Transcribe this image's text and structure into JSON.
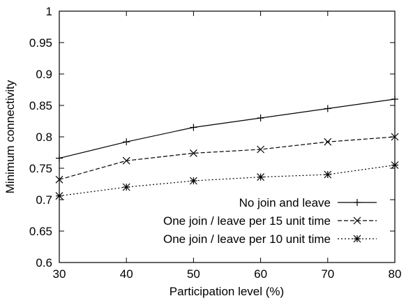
{
  "chart_data": {
    "type": "line",
    "title": "",
    "xlabel": "Participation level (%)",
    "ylabel": "Minimum connectivity",
    "xlim": [
      30,
      80
    ],
    "ylim": [
      0.6,
      1.0
    ],
    "x": [
      30,
      40,
      50,
      60,
      70,
      80
    ],
    "x_ticks": [
      "30",
      "40",
      "50",
      "60",
      "70",
      "80"
    ],
    "y_ticks": [
      "0.6",
      "0.65",
      "0.7",
      "0.75",
      "0.8",
      "0.85",
      "0.9",
      "0.95",
      "1"
    ],
    "grid": false,
    "legend_position": "bottom-right",
    "series": [
      {
        "name": "No join and leave",
        "marker": "plus",
        "dash": "solid",
        "values": [
          0.766,
          0.792,
          0.815,
          0.83,
          0.845,
          0.86
        ]
      },
      {
        "name": "One join / leave per 15 unit time",
        "marker": "cross",
        "dash": "dashed",
        "values": [
          0.732,
          0.762,
          0.774,
          0.78,
          0.792,
          0.8
        ]
      },
      {
        "name": "One join / leave per 10 unit time",
        "marker": "star",
        "dash": "dotted",
        "values": [
          0.706,
          0.72,
          0.73,
          0.736,
          0.74,
          0.755
        ]
      }
    ],
    "colors": {
      "line": "#000000",
      "background": "#ffffff"
    }
  }
}
